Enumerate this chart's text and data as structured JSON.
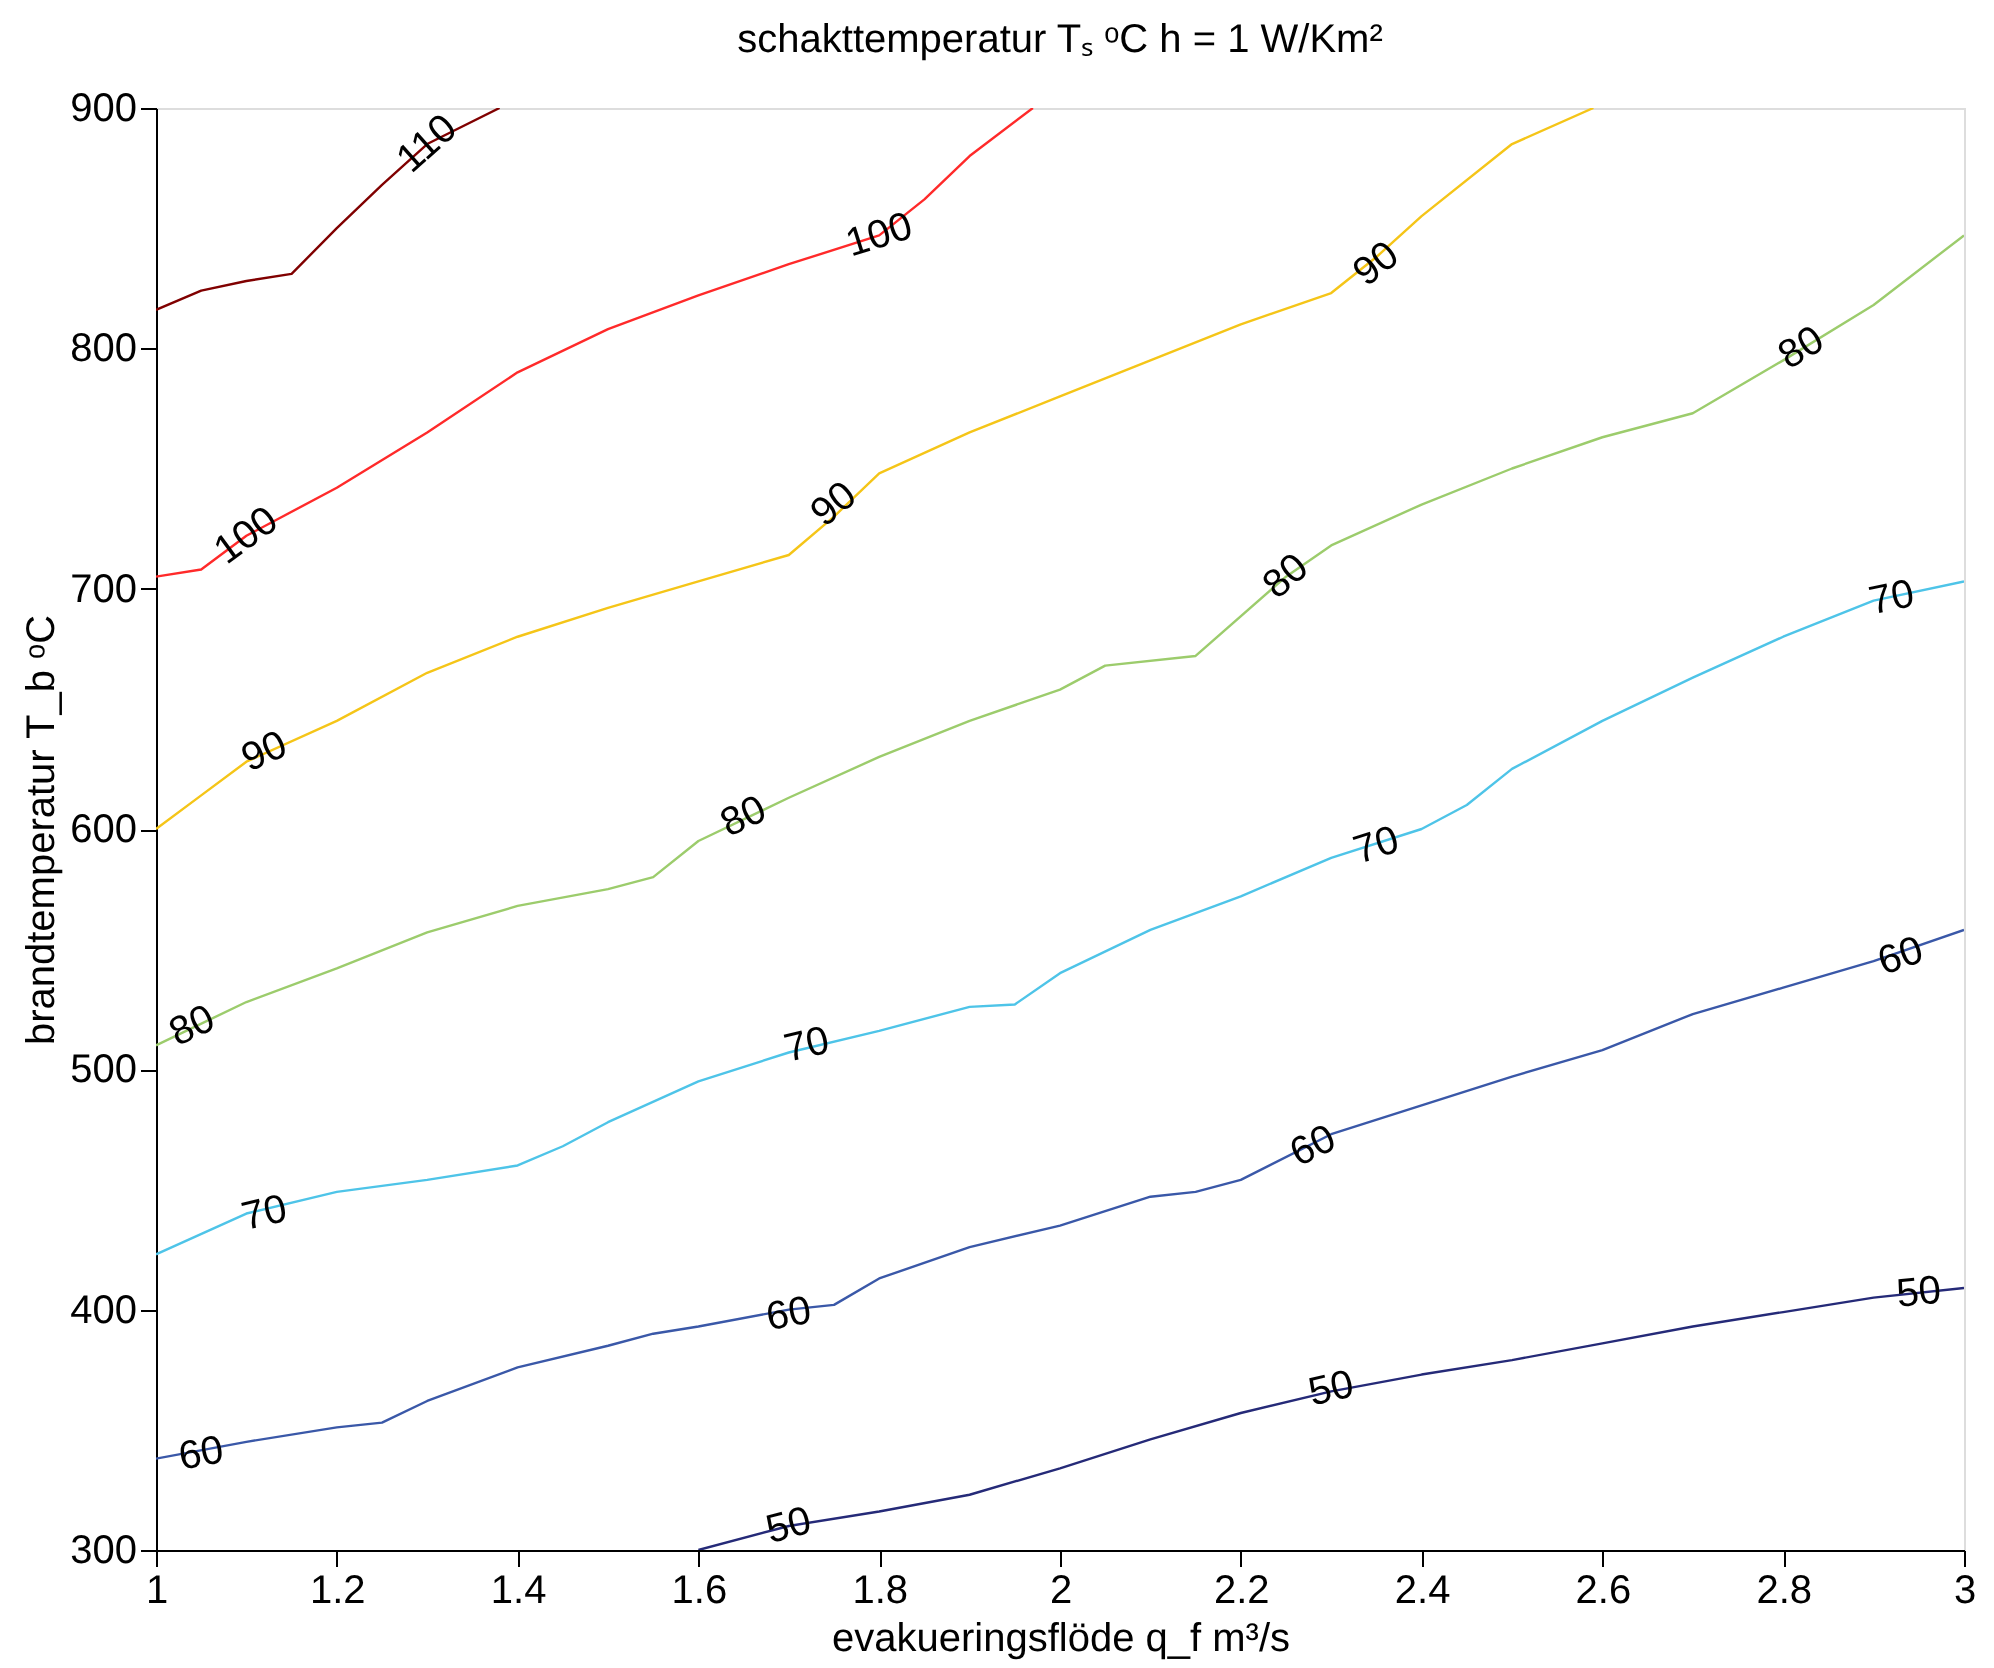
{
  "chart_data": {
    "type": "line",
    "title": "schakttemperatur Tₛ ᵒC        h = 1 W/Km²",
    "xlabel": "evakueringsflöde q_f  m³/s",
    "ylabel": "brandtemperatur T_b ᵒC",
    "xlim": [
      1,
      3
    ],
    "xticks": [
      1,
      1.2,
      1.4,
      1.6,
      1.8,
      2,
      2.2,
      2.4,
      2.6,
      2.8,
      3
    ],
    "ylim": [
      300,
      900
    ],
    "yticks": [
      300,
      400,
      500,
      600,
      700,
      800,
      900
    ],
    "grid": false,
    "marker": "none",
    "line_style": "solid",
    "series": [
      {
        "color": "#800000",
        "x": [
          1,
          1.05,
          1.1,
          1.15,
          1.2,
          1.25,
          1.3,
          1.38
        ],
        "values": [
          816,
          824,
          828,
          831,
          850,
          868,
          885,
          900
        ]
      },
      {
        "color": "#ff2a2a",
        "x": [
          1,
          1.05,
          1.1,
          1.2,
          1.3,
          1.4,
          1.5,
          1.6,
          1.7,
          1.8,
          1.85,
          1.9,
          1.97
        ],
        "values": [
          705,
          708,
          722,
          742,
          765,
          790,
          808,
          822,
          835,
          847,
          862,
          880,
          900
        ]
      },
      {
        "color": "#f5c518",
        "x": [
          1,
          1.05,
          1.1,
          1.2,
          1.3,
          1.4,
          1.5,
          1.6,
          1.7,
          1.75,
          1.8,
          1.9,
          2.0,
          2.1,
          2.2,
          2.3,
          2.35,
          2.4,
          2.5,
          2.59
        ],
        "values": [
          600,
          614,
          628,
          645,
          665,
          680,
          692,
          703,
          714,
          730,
          748,
          765,
          780,
          795,
          810,
          823,
          838,
          855,
          885,
          900
        ]
      },
      {
        "color": "#9ccc6c",
        "x": [
          1,
          1.1,
          1.2,
          1.3,
          1.4,
          1.5,
          1.55,
          1.6,
          1.7,
          1.8,
          1.9,
          2.0,
          2.05,
          2.15,
          2.25,
          2.3,
          2.4,
          2.5,
          2.6,
          2.7,
          2.8,
          2.9,
          3.0
        ],
        "values": [
          510,
          528,
          542,
          557,
          568,
          575,
          580,
          595,
          613,
          630,
          645,
          658,
          668,
          672,
          705,
          718,
          735,
          750,
          763,
          773,
          795,
          818,
          847
        ]
      },
      {
        "color": "#4ec4e8",
        "x": [
          1,
          1.1,
          1.2,
          1.3,
          1.4,
          1.45,
          1.5,
          1.6,
          1.7,
          1.8,
          1.9,
          1.95,
          2.0,
          2.1,
          2.2,
          2.3,
          2.4,
          2.45,
          2.5,
          2.6,
          2.7,
          2.8,
          2.9,
          3.0
        ],
        "values": [
          423,
          440,
          449,
          454,
          460,
          468,
          478,
          495,
          507,
          516,
          526,
          527,
          540,
          558,
          572,
          588,
          600,
          610,
          625,
          645,
          663,
          680,
          695,
          703
        ]
      },
      {
        "color": "#3a58a8",
        "x": [
          1,
          1.1,
          1.2,
          1.25,
          1.3,
          1.4,
          1.5,
          1.55,
          1.6,
          1.7,
          1.75,
          1.8,
          1.9,
          2.0,
          2.1,
          2.15,
          2.2,
          2.3,
          2.4,
          2.5,
          2.6,
          2.7,
          2.8,
          2.9,
          3.0
        ],
        "values": [
          338,
          345,
          351,
          353,
          362,
          376,
          385,
          390,
          393,
          400,
          402,
          413,
          426,
          435,
          447,
          449,
          454,
          473,
          485,
          497,
          508,
          523,
          534,
          545,
          558
        ]
      },
      {
        "color": "#252a78",
        "x": [
          1.6,
          1.7,
          1.8,
          1.9,
          2.0,
          2.1,
          2.2,
          2.3,
          2.4,
          2.5,
          2.6,
          2.7,
          2.8,
          2.9,
          3.0
        ],
        "values": [
          300,
          310,
          316,
          323,
          334,
          346,
          357,
          366,
          373,
          379,
          386,
          393,
          399,
          405,
          409
        ]
      }
    ],
    "annotations": [
      {
        "text": "110",
        "x": 1.3,
        "y": 885
      },
      {
        "text": "100",
        "x": 1.1,
        "y": 722
      },
      {
        "text": "100",
        "x": 1.8,
        "y": 847
      },
      {
        "text": "90",
        "x": 1.12,
        "y": 632
      },
      {
        "text": "90",
        "x": 1.75,
        "y": 735
      },
      {
        "text": "90",
        "x": 2.35,
        "y": 835
      },
      {
        "text": "80",
        "x": 1.04,
        "y": 518
      },
      {
        "text": "80",
        "x": 1.65,
        "y": 605
      },
      {
        "text": "80",
        "x": 2.25,
        "y": 705
      },
      {
        "text": "80",
        "x": 2.82,
        "y": 800
      },
      {
        "text": "70",
        "x": 1.12,
        "y": 440
      },
      {
        "text": "70",
        "x": 1.72,
        "y": 510
      },
      {
        "text": "70",
        "x": 2.35,
        "y": 593
      },
      {
        "text": "70",
        "x": 2.92,
        "y": 696
      },
      {
        "text": "60",
        "x": 1.05,
        "y": 340
      },
      {
        "text": "60",
        "x": 1.7,
        "y": 398
      },
      {
        "text": "60",
        "x": 2.28,
        "y": 468
      },
      {
        "text": "60",
        "x": 2.93,
        "y": 547
      },
      {
        "text": "50",
        "x": 1.7,
        "y": 310
      },
      {
        "text": "50",
        "x": 2.3,
        "y": 367
      },
      {
        "text": "50",
        "x": 2.95,
        "y": 407
      }
    ]
  }
}
